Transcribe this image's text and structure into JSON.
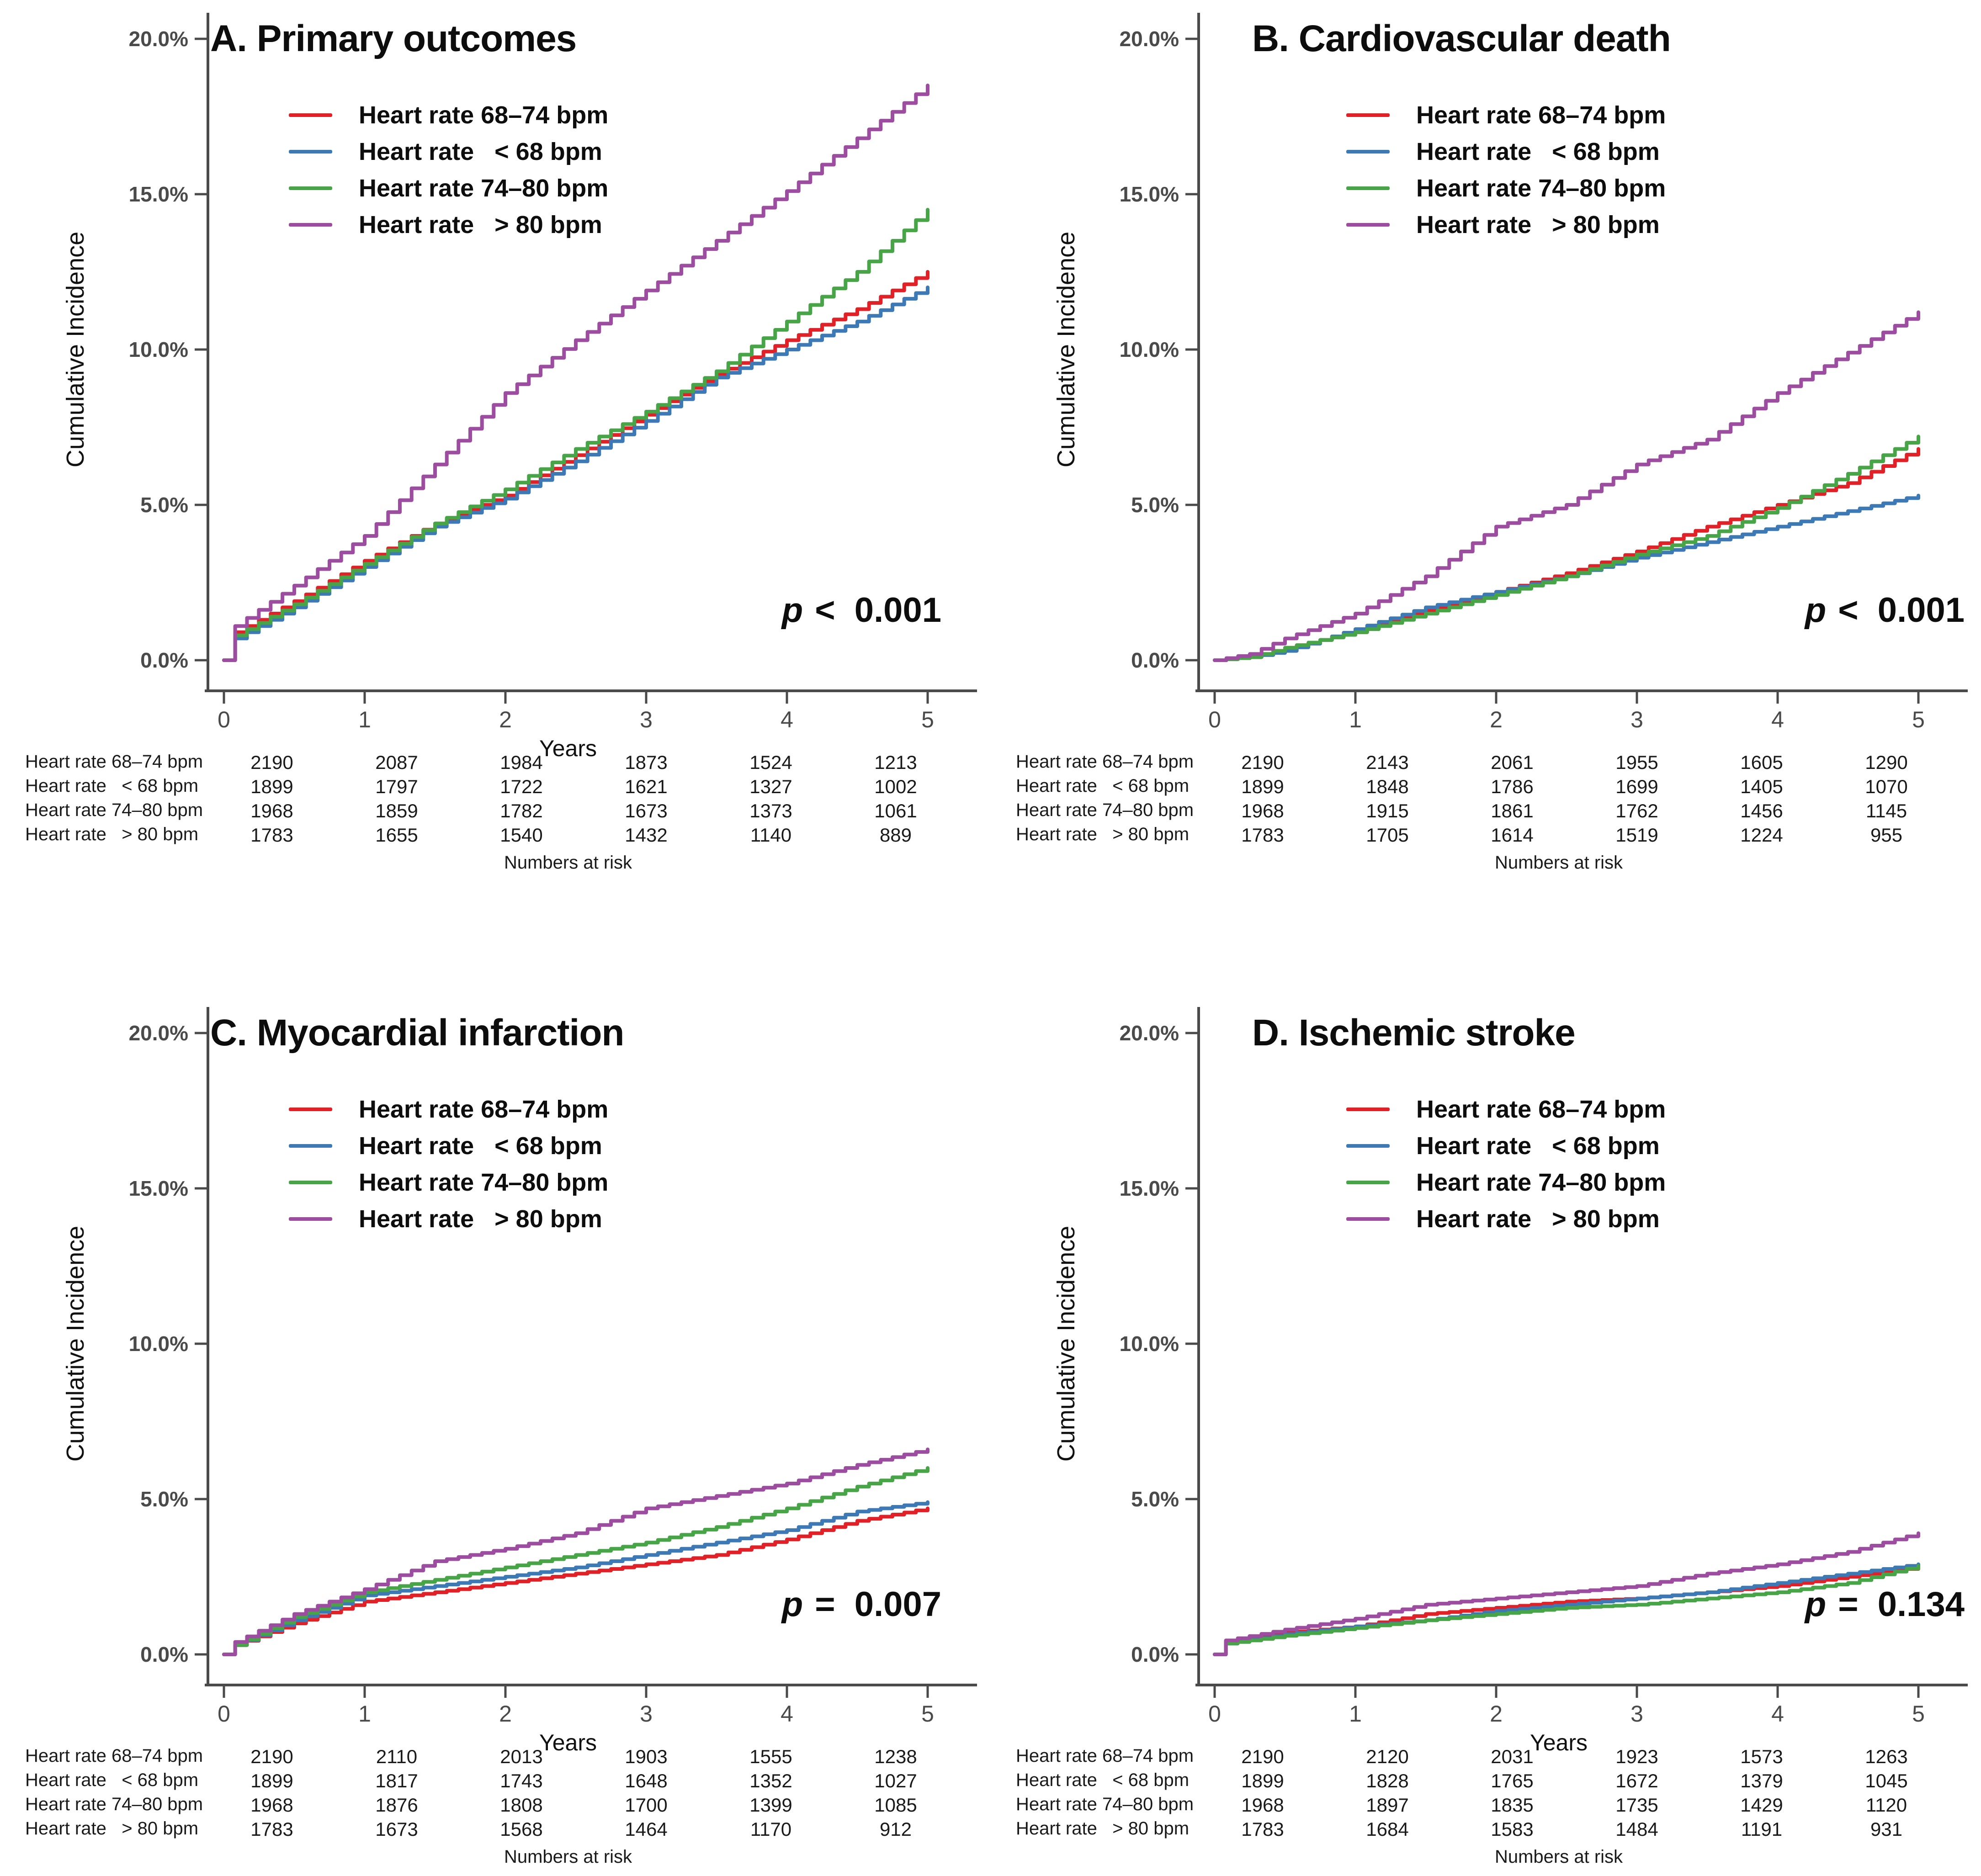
{
  "figure": {
    "ylabel": "Cumulative Incidence",
    "risk_caption": "Numbers at risk",
    "colors": {
      "red": "#e02228",
      "blue": "#3d7ab5",
      "green": "#47a447",
      "purple": "#9c4da0"
    }
  },
  "chart_data": [
    {
      "id": "A",
      "type": "line",
      "title": "A. Primary outcomes",
      "xlabel": "Years",
      "ylabel": "Cumulative Incidence",
      "xlim": [
        0,
        5
      ],
      "ylim": [
        0,
        20
      ],
      "grid": false,
      "legend_position": "upper-left",
      "p": {
        "symbol": "p",
        "value": "<  0.001"
      },
      "yticks": [
        "0.0%",
        "5.0%",
        "10.0%",
        "15.0%",
        "20.0%"
      ],
      "xticks": [
        "0",
        "1",
        "2",
        "3",
        "4",
        "5"
      ],
      "series": [
        {
          "name": "Heart rate 68–74 bpm",
          "color": "red",
          "x": [
            0,
            0.08,
            0.5,
            1,
            1.5,
            2,
            2.5,
            3,
            3.5,
            4,
            4.5,
            5
          ],
          "y": [
            0,
            0.9,
            1.9,
            3.2,
            4.4,
            5.3,
            6.6,
            7.9,
            9.2,
            10.3,
            11.3,
            12.5
          ],
          "numbers_at_risk": [
            2190,
            2087,
            1984,
            1873,
            1524,
            1213
          ]
        },
        {
          "name": "Heart rate   < 68 bpm",
          "color": "blue",
          "x": [
            0,
            0.08,
            0.5,
            1,
            1.5,
            2,
            2.5,
            3,
            3.5,
            4,
            4.5,
            5
          ],
          "y": [
            0,
            0.7,
            1.7,
            3.0,
            4.3,
            5.2,
            6.4,
            7.7,
            9.1,
            10.0,
            10.9,
            12.0
          ],
          "numbers_at_risk": [
            1899,
            1797,
            1722,
            1621,
            1327,
            1002
          ]
        },
        {
          "name": "Heart rate 74–80 bpm",
          "color": "green",
          "x": [
            0,
            0.08,
            0.5,
            1,
            1.5,
            2,
            2.5,
            3,
            3.5,
            4,
            4.5,
            5
          ],
          "y": [
            0,
            0.8,
            1.8,
            3.1,
            4.4,
            5.5,
            6.8,
            8.0,
            9.3,
            10.9,
            12.5,
            14.5
          ],
          "numbers_at_risk": [
            1968,
            1859,
            1782,
            1673,
            1373,
            1061
          ]
        },
        {
          "name": "Heart rate   > 80 bpm",
          "color": "purple",
          "x": [
            0,
            0.08,
            0.5,
            1,
            1.5,
            2,
            2.5,
            3,
            3.5,
            4,
            4.5,
            5
          ],
          "y": [
            0,
            1.1,
            2.4,
            4.0,
            6.3,
            8.6,
            10.3,
            11.9,
            13.5,
            15.1,
            16.8,
            18.5
          ],
          "numbers_at_risk": [
            1783,
            1655,
            1540,
            1432,
            1140,
            889
          ]
        }
      ]
    },
    {
      "id": "B",
      "type": "line",
      "title": "B. Cardiovascular death",
      "xlabel": "",
      "ylabel": "Cumulative Incidence",
      "xlim": [
        0,
        5
      ],
      "ylim": [
        0,
        20
      ],
      "grid": false,
      "legend_position": "upper-left",
      "p": {
        "symbol": "p",
        "value": "<  0.001"
      },
      "yticks": [
        "0.0%",
        "5.0%",
        "10.0%",
        "15.0%",
        "20.0%"
      ],
      "xticks": [
        "0",
        "1",
        "2",
        "3",
        "4",
        "5"
      ],
      "series": [
        {
          "name": "Heart rate 68–74 bpm",
          "color": "red",
          "x": [
            0,
            0.25,
            0.5,
            1,
            1.5,
            2,
            2.5,
            3,
            3.5,
            4,
            4.5,
            5
          ],
          "y": [
            0,
            0.1,
            0.4,
            0.9,
            1.6,
            2.2,
            2.8,
            3.5,
            4.3,
            5.0,
            5.7,
            6.8
          ],
          "numbers_at_risk": [
            2190,
            2143,
            2061,
            1955,
            1605,
            1290
          ]
        },
        {
          "name": "Heart rate   < 68 bpm",
          "color": "blue",
          "x": [
            0,
            0.25,
            0.5,
            1,
            1.5,
            2,
            2.5,
            3,
            3.5,
            4,
            4.5,
            5
          ],
          "y": [
            0,
            0.1,
            0.3,
            1.0,
            1.7,
            2.2,
            2.7,
            3.3,
            3.8,
            4.3,
            4.8,
            5.3
          ],
          "numbers_at_risk": [
            1899,
            1848,
            1786,
            1699,
            1405,
            1070
          ]
        },
        {
          "name": "Heart rate 74–80 bpm",
          "color": "green",
          "x": [
            0,
            0.25,
            0.5,
            1,
            1.5,
            2,
            2.5,
            3,
            3.5,
            4,
            4.5,
            5
          ],
          "y": [
            0,
            0.1,
            0.4,
            0.9,
            1.5,
            2.1,
            2.7,
            3.4,
            4.0,
            4.9,
            6.0,
            7.2
          ],
          "numbers_at_risk": [
            1968,
            1915,
            1861,
            1762,
            1456,
            1145
          ]
        },
        {
          "name": "Heart rate   > 80 bpm",
          "color": "purple",
          "x": [
            0,
            0.25,
            0.5,
            1,
            1.5,
            2,
            2.5,
            3,
            3.5,
            4,
            4.5,
            5
          ],
          "y": [
            0,
            0.2,
            0.7,
            1.5,
            2.7,
            4.3,
            5.0,
            6.3,
            7.1,
            8.6,
            9.9,
            11.2
          ],
          "numbers_at_risk": [
            1783,
            1705,
            1614,
            1519,
            1224,
            955
          ]
        }
      ]
    },
    {
      "id": "C",
      "type": "line",
      "title": "C. Myocardial infarction",
      "xlabel": "Years",
      "ylabel": "Cumulative Incidence",
      "xlim": [
        0,
        5
      ],
      "ylim": [
        0,
        20
      ],
      "grid": false,
      "legend_position": "upper-left",
      "p": {
        "symbol": "p",
        "value": "=  0.007"
      },
      "yticks": [
        "0.0%",
        "5.0%",
        "10.0%",
        "15.0%",
        "20.0%"
      ],
      "xticks": [
        "0",
        "1",
        "2",
        "3",
        "4",
        "5"
      ],
      "series": [
        {
          "name": "Heart rate 68–74 bpm",
          "color": "red",
          "x": [
            0,
            0.08,
            0.5,
            1,
            1.5,
            2,
            2.5,
            3,
            3.5,
            4,
            4.5,
            5
          ],
          "y": [
            0,
            0.3,
            1.0,
            1.7,
            2.0,
            2.3,
            2.6,
            2.9,
            3.2,
            3.7,
            4.3,
            4.7
          ],
          "numbers_at_risk": [
            2190,
            2110,
            2013,
            1903,
            1555,
            1238
          ]
        },
        {
          "name": "Heart rate   < 68 bpm",
          "color": "blue",
          "x": [
            0,
            0.08,
            0.5,
            1,
            1.5,
            2,
            2.5,
            3,
            3.5,
            4,
            4.5,
            5
          ],
          "y": [
            0,
            0.3,
            1.1,
            1.9,
            2.2,
            2.5,
            2.8,
            3.2,
            3.6,
            4.0,
            4.6,
            4.9
          ],
          "numbers_at_risk": [
            1899,
            1817,
            1743,
            1648,
            1352,
            1027
          ]
        },
        {
          "name": "Heart rate 74–80 bpm",
          "color": "green",
          "x": [
            0,
            0.08,
            0.5,
            1,
            1.5,
            2,
            2.5,
            3,
            3.5,
            4,
            4.5,
            5
          ],
          "y": [
            0,
            0.3,
            1.2,
            2.0,
            2.4,
            2.8,
            3.2,
            3.6,
            4.1,
            4.7,
            5.4,
            6.0
          ],
          "numbers_at_risk": [
            1968,
            1876,
            1808,
            1700,
            1399,
            1085
          ]
        },
        {
          "name": "Heart rate   > 80 bpm",
          "color": "purple",
          "x": [
            0,
            0.08,
            0.5,
            1,
            1.5,
            2,
            2.5,
            3,
            3.5,
            4,
            4.5,
            5
          ],
          "y": [
            0,
            0.4,
            1.3,
            2.1,
            3.0,
            3.4,
            3.9,
            4.7,
            5.1,
            5.5,
            6.1,
            6.6
          ],
          "numbers_at_risk": [
            1783,
            1673,
            1568,
            1464,
            1170,
            912
          ]
        }
      ]
    },
    {
      "id": "D",
      "type": "line",
      "title": "D. Ischemic stroke",
      "xlabel": "Years",
      "ylabel": "Cumulative Incidence",
      "xlim": [
        0,
        5
      ],
      "ylim": [
        0,
        20
      ],
      "grid": false,
      "legend_position": "upper-left",
      "p": {
        "symbol": "p",
        "value": "=  0.134"
      },
      "yticks": [
        "0.0%",
        "5.0%",
        "10.0%",
        "15.0%",
        "20.0%"
      ],
      "xticks": [
        "0",
        "1",
        "2",
        "3",
        "4",
        "5"
      ],
      "series": [
        {
          "name": "Heart rate 68–74 bpm",
          "color": "red",
          "x": [
            0,
            0.08,
            0.5,
            1,
            1.5,
            2,
            2.5,
            3,
            3.5,
            4,
            4.5,
            5
          ],
          "y": [
            0,
            0.4,
            0.7,
            0.9,
            1.3,
            1.5,
            1.7,
            1.8,
            2.0,
            2.2,
            2.5,
            2.8
          ],
          "numbers_at_risk": [
            2190,
            2120,
            2031,
            1923,
            1573,
            1263
          ]
        },
        {
          "name": "Heart rate   < 68 bpm",
          "color": "blue",
          "x": [
            0,
            0.08,
            0.5,
            1,
            1.5,
            2,
            2.5,
            3,
            3.5,
            4,
            4.5,
            5
          ],
          "y": [
            0,
            0.35,
            0.65,
            0.9,
            1.1,
            1.4,
            1.6,
            1.8,
            2.0,
            2.3,
            2.6,
            2.9
          ],
          "numbers_at_risk": [
            1899,
            1828,
            1765,
            1672,
            1379,
            1045
          ]
        },
        {
          "name": "Heart rate 74–80 bpm",
          "color": "green",
          "x": [
            0,
            0.08,
            0.5,
            1,
            1.5,
            2,
            2.5,
            3,
            3.5,
            4,
            4.5,
            5
          ],
          "y": [
            0,
            0.35,
            0.6,
            0.85,
            1.1,
            1.3,
            1.5,
            1.6,
            1.8,
            2.0,
            2.3,
            2.85
          ],
          "numbers_at_risk": [
            1968,
            1897,
            1835,
            1735,
            1429,
            1120
          ]
        },
        {
          "name": "Heart rate   > 80 bpm",
          "color": "purple",
          "x": [
            0,
            0.08,
            0.5,
            1,
            1.5,
            2,
            2.5,
            3,
            3.5,
            4,
            4.5,
            5
          ],
          "y": [
            0,
            0.45,
            0.8,
            1.15,
            1.6,
            1.8,
            2.0,
            2.2,
            2.6,
            2.9,
            3.3,
            3.9
          ],
          "numbers_at_risk": [
            1783,
            1684,
            1583,
            1484,
            1191,
            931
          ]
        }
      ]
    }
  ]
}
